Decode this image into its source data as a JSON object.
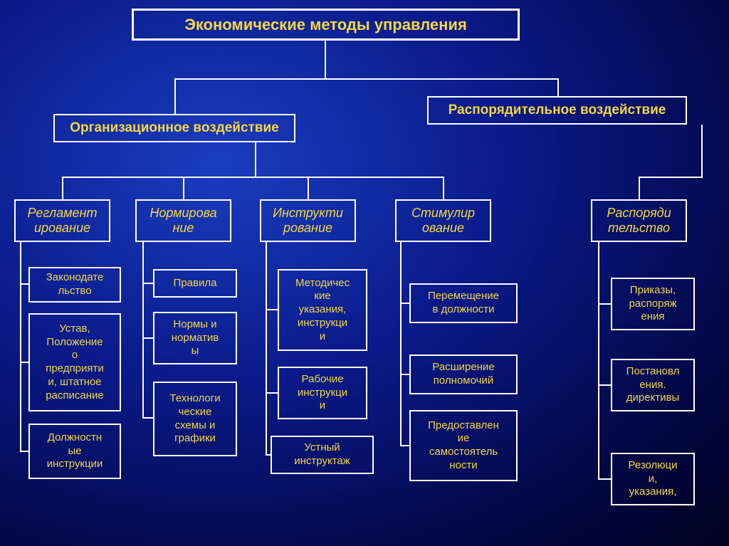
{
  "diagram": {
    "type": "tree",
    "background": {
      "gradient_from": "#1a3dbf",
      "gradient_to": "#010320",
      "style": "radial"
    },
    "border_color": "#ffffff",
    "text_color": "#f5d742",
    "title": {
      "label": "Экономические методы управления",
      "fontsize": 22,
      "bold": true
    },
    "level2": {
      "org": {
        "label": "Организационное воздействие",
        "fontsize": 19,
        "bold": true
      },
      "rasp": {
        "label": "Распорядительное воздействие",
        "fontsize": 19,
        "bold": true
      }
    },
    "categories": {
      "reg": {
        "label": "Регламент\nирование",
        "italic": true,
        "fontsize": 18
      },
      "norm": {
        "label": "Нормирова\nние",
        "italic": true,
        "fontsize": 18
      },
      "instr": {
        "label": "Инструкти\nрование",
        "italic": true,
        "fontsize": 18
      },
      "stim": {
        "label": "Стимулир\nование",
        "italic": true,
        "fontsize": 18
      },
      "rasptel": {
        "label": "Распоряди\nтельство",
        "italic": true,
        "fontsize": 18
      }
    },
    "leaves": {
      "reg": [
        "Законодате\nльство",
        "Устав,\nПоложение\nо\nпредприяти\nи, штатное\nрасписание",
        "Должностн\nые\nинструкции"
      ],
      "norm": [
        "Правила",
        "Нормы и\nнорматив\nы",
        "Технологи\nческие\nсхемы и\nграфики"
      ],
      "instr": [
        "Методичес\nкие\nуказания,\nинструкци\nи",
        "Рабочие\nинструкци\nи",
        "Устный\nинструктаж"
      ],
      "stim": [
        "Перемещение\nв должности",
        "Расширение\nполномочий",
        "Предоставлен\nие\nсамостоятель\nности"
      ],
      "rasptel": [
        "Приказы,\nраспоряж\nения",
        "Постановл\nения.\nдирективы",
        "Резолюци\nи,\nуказания,"
      ]
    }
  }
}
